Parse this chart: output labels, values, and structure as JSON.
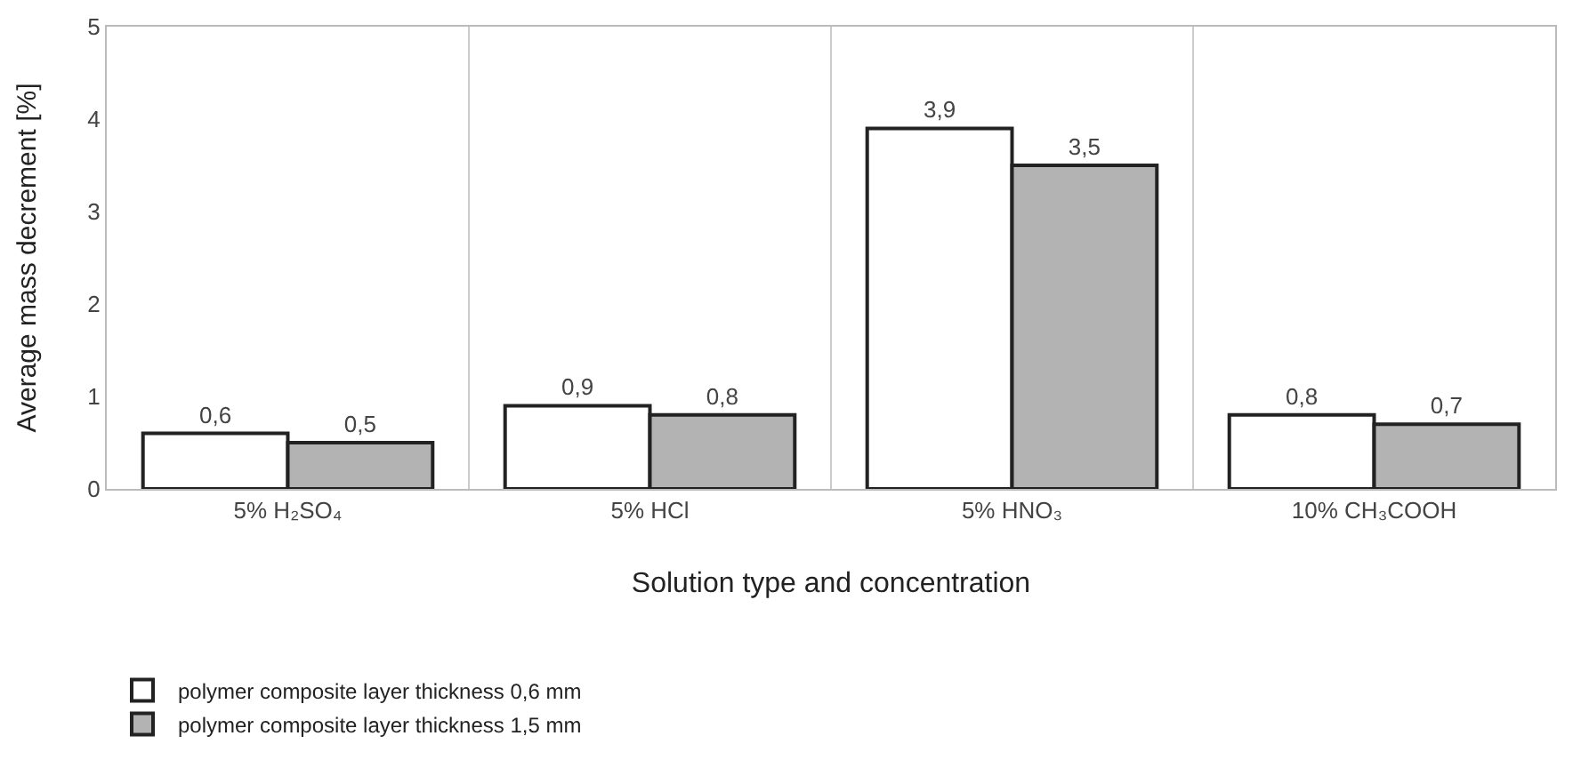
{
  "chart_data": {
    "type": "bar",
    "xlabel": "Solution type and concentration",
    "ylabel": "Average mass decrement [%]",
    "categories": [
      "5% H₂SO₄",
      "5% HCl",
      "5% HNO₃",
      "10% CH₃COOH"
    ],
    "series": [
      {
        "name": "polymer composite layer thickness 0,6 mm",
        "color": "#ffffff",
        "values": [
          0.6,
          0.9,
          3.9,
          0.8
        ],
        "value_labels": [
          "0,6",
          "0,9",
          "3,9",
          "0,8"
        ]
      },
      {
        "name": "polymer composite layer thickness 1,5 mm",
        "color": "#b3b3b3",
        "values": [
          0.5,
          0.8,
          3.5,
          0.7
        ],
        "value_labels": [
          "0,5",
          "0,8",
          "3,5",
          "0,7"
        ]
      }
    ],
    "ylim": [
      0,
      5
    ],
    "yticks": [
      0,
      1,
      2,
      3,
      4,
      5
    ],
    "grid": "x",
    "legend": "bottom"
  }
}
